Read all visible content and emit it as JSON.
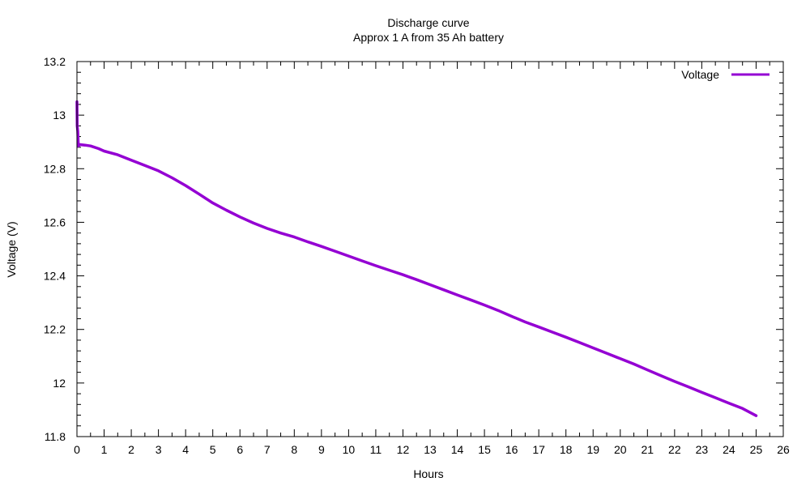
{
  "chart_data": {
    "type": "line",
    "title": "Discharge curve",
    "subtitle": "Approx 1 A from 35 Ah battery",
    "xlabel": "Hours",
    "ylabel": "Voltage (V)",
    "xlim": [
      0,
      26
    ],
    "ylim": [
      11.8,
      13.2
    ],
    "x_ticks": [
      0,
      1,
      2,
      3,
      4,
      5,
      6,
      7,
      8,
      9,
      10,
      11,
      12,
      13,
      14,
      15,
      16,
      17,
      18,
      19,
      20,
      21,
      22,
      23,
      24,
      25,
      26
    ],
    "y_ticks": [
      11.8,
      12,
      12.2,
      12.4,
      12.6,
      12.8,
      13,
      13.2
    ],
    "y_tick_labels": [
      "11.8",
      "12",
      "12.2",
      "12.4",
      "12.6",
      "12.8",
      "13",
      "13.2"
    ],
    "x_minor_per_major": 2,
    "y_minor_per_major": 5,
    "grid": false,
    "legend_position": "top-right",
    "series": [
      {
        "name": "Voltage",
        "color": "#9400d3",
        "x": [
          0,
          0.01,
          0.03,
          0.05,
          0.1,
          0.3,
          0.5,
          0.8,
          1.0,
          1.5,
          2.0,
          2.5,
          3.0,
          3.5,
          4.0,
          4.5,
          5.0,
          5.5,
          6.0,
          6.5,
          7.0,
          7.5,
          8.0,
          8.5,
          9.0,
          9.5,
          10.0,
          10.5,
          11.0,
          11.5,
          12.0,
          12.5,
          13.0,
          13.5,
          14.0,
          14.5,
          15.0,
          15.5,
          16.0,
          16.5,
          17.0,
          17.5,
          18.0,
          18.5,
          19.0,
          19.5,
          20.0,
          20.5,
          21.0,
          21.5,
          22.0,
          22.5,
          23.0,
          23.5,
          24.0,
          24.5,
          25.0
        ],
        "y": [
          13.05,
          12.96,
          12.94,
          12.885,
          12.89,
          12.888,
          12.885,
          12.875,
          12.866,
          12.852,
          12.832,
          12.812,
          12.792,
          12.766,
          12.737,
          12.705,
          12.672,
          12.645,
          12.62,
          12.597,
          12.577,
          12.56,
          12.545,
          12.527,
          12.51,
          12.492,
          12.474,
          12.456,
          12.438,
          12.421,
          12.404,
          12.386,
          12.367,
          12.348,
          12.329,
          12.31,
          12.291,
          12.271,
          12.249,
          12.228,
          12.209,
          12.19,
          12.171,
          12.151,
          12.131,
          12.111,
          12.091,
          12.071,
          12.049,
          12.027,
          12.006,
          11.986,
          11.965,
          11.945,
          11.925,
          11.905,
          11.878
        ]
      }
    ]
  }
}
